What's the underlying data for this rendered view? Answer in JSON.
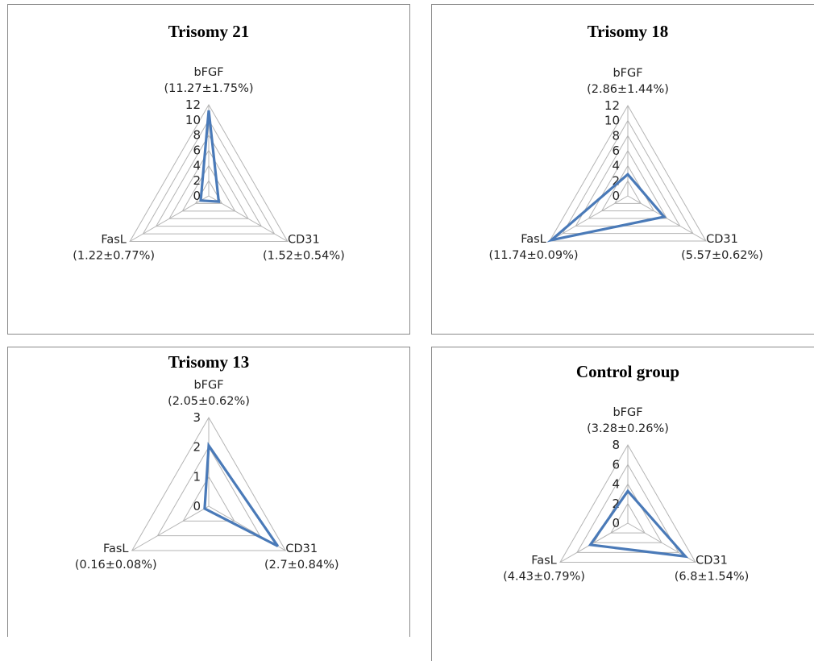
{
  "chart_data": [
    {
      "type": "radar",
      "title": "Trisomy 21",
      "axes": [
        {
          "label": "bFGF",
          "value_text": "(11.27±1.75%)",
          "value": 11.27
        },
        {
          "label": "CD31",
          "value_text": "(1.52±0.54%)",
          "value": 1.52
        },
        {
          "label": "FasL",
          "value_text": "(1.22±0.77%)",
          "value": 1.22
        }
      ],
      "ticks": [
        0,
        2,
        4,
        6,
        8,
        10,
        12
      ],
      "rlim": [
        0,
        12
      ],
      "series_color": "#4a7ab8"
    },
    {
      "type": "radar",
      "title": "Trisomy 18",
      "axes": [
        {
          "label": "bFGF",
          "value_text": "(2.86±1.44%)",
          "value": 2.86
        },
        {
          "label": "CD31",
          "value_text": "(5.57±0.62%)",
          "value": 5.57
        },
        {
          "label": "FasL",
          "value_text": "(11.74±0.09%)",
          "value": 11.74
        }
      ],
      "ticks": [
        0,
        2,
        4,
        6,
        8,
        10,
        12
      ],
      "rlim": [
        0,
        12
      ],
      "series_color": "#4a7ab8"
    },
    {
      "type": "radar",
      "title": "Trisomy 13",
      "axes": [
        {
          "label": "bFGF",
          "value_text": "(2.05±0.62%)",
          "value": 2.05
        },
        {
          "label": "CD31",
          "value_text": "(2.7±0.84%)",
          "value": 2.7
        },
        {
          "label": "FasL",
          "value_text": "(0.16±0.08%)",
          "value": 0.16
        }
      ],
      "ticks": [
        0,
        1,
        2,
        3
      ],
      "rlim": [
        0,
        3
      ],
      "series_color": "#4a7ab8"
    },
    {
      "type": "radar",
      "title": "Control group",
      "axes": [
        {
          "label": "bFGF",
          "value_text": "(3.28±0.26%)",
          "value": 3.28
        },
        {
          "label": "CD31",
          "value_text": "(6.8±1.54%)",
          "value": 6.8
        },
        {
          "label": "FasL",
          "value_text": "(4.43±0.79%)",
          "value": 4.43
        }
      ],
      "ticks": [
        0,
        2,
        4,
        6,
        8
      ],
      "rlim": [
        0,
        8
      ],
      "series_color": "#4a7ab8"
    }
  ]
}
